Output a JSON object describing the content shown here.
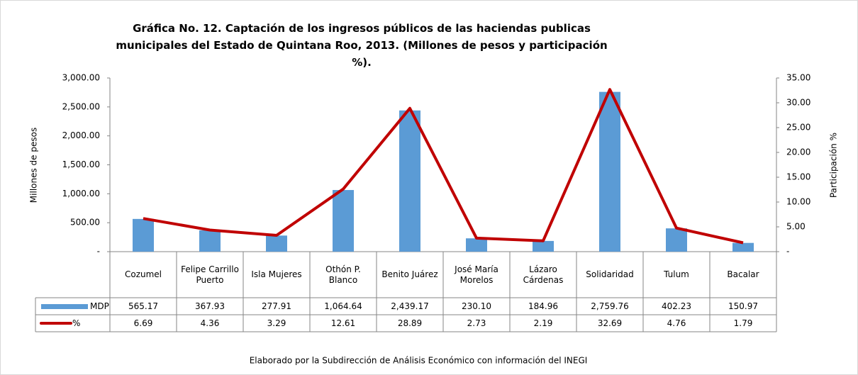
{
  "chart_data": {
    "type": "bar_line",
    "title": "Gráfica No. 12. Captación de los ingresos públicos de las haciendas publicas municipales del Estado de Quintana Roo, 2013. (Millones de pesos y participación %).",
    "y_label": "Millones de pesos",
    "y2_label": "Participación %",
    "footer": "Elaborado por la Subdirección de Análisis Económico con información del INEGI",
    "categories": [
      "Cozumel",
      "Felipe Carrillo Puerto",
      "Isla Mujeres",
      "Othón P. Blanco",
      "Benito Juárez",
      "José María Morelos",
      "Lázaro Cárdenas",
      "Solidaridad",
      "Tulum",
      "Bacalar"
    ],
    "series": [
      {
        "name": "MDP",
        "type": "bar",
        "color": "#5b9bd5",
        "values": [
          565.17,
          367.93,
          277.91,
          1064.64,
          2439.17,
          230.1,
          184.96,
          2759.76,
          402.23,
          150.97
        ],
        "value_labels": [
          "565.17",
          "367.93",
          "277.91",
          "1,064.64",
          "2,439.17",
          "230.10",
          "184.96",
          "2,759.76",
          "402.23",
          "150.97"
        ]
      },
      {
        "name": "%",
        "type": "line",
        "axis": "y2",
        "color": "#c00000",
        "values": [
          6.69,
          4.36,
          3.29,
          12.61,
          28.89,
          2.73,
          2.19,
          32.69,
          4.76,
          1.79
        ]
      }
    ],
    "ylim": [
      0,
      3000
    ],
    "yticks": [
      {
        "value": 0,
        "label": "-"
      },
      {
        "value": 500,
        "label": "500.00"
      },
      {
        "value": 1000,
        "label": "1,000.00"
      },
      {
        "value": 1500,
        "label": "1,500.00"
      },
      {
        "value": 2000,
        "label": "2,000.00"
      },
      {
        "value": 2500,
        "label": "2,500.00"
      },
      {
        "value": 3000,
        "label": "3,000.00"
      }
    ],
    "y2lim": [
      0,
      35
    ],
    "y2ticks": [
      {
        "value": 0,
        "label": "-"
      },
      {
        "value": 5,
        "label": "5.00"
      },
      {
        "value": 10,
        "label": "10.00"
      },
      {
        "value": 15,
        "label": "15.00"
      },
      {
        "value": 20,
        "label": "20.00"
      },
      {
        "value": 25,
        "label": "25.00"
      },
      {
        "value": 30,
        "label": "30.00"
      },
      {
        "value": 35,
        "label": "35.00"
      }
    ]
  }
}
